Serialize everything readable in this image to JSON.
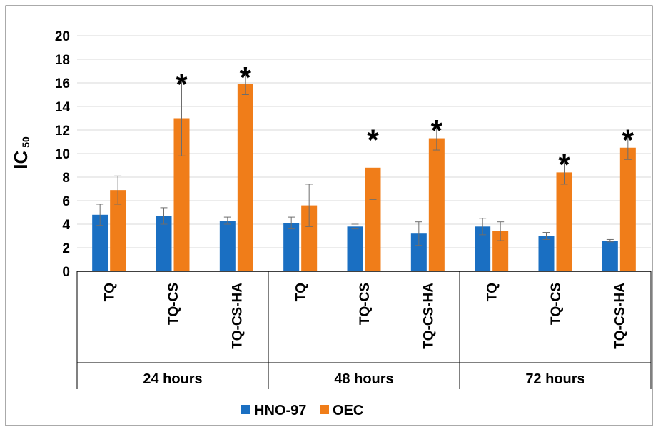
{
  "chart_data": {
    "type": "bar",
    "ylabel": "IC",
    "ylabel_sub": "50",
    "ylim": [
      0,
      20
    ],
    "yticks": [
      0,
      2,
      4,
      6,
      8,
      10,
      12,
      14,
      16,
      18,
      20
    ],
    "grid": true,
    "groups": [
      "24 hours",
      "48 hours",
      "72 hours"
    ],
    "categories": [
      "TQ",
      "TQ-CS",
      "TQ-CS-HA",
      "TQ",
      "TQ-CS",
      "TQ-CS-HA",
      "TQ",
      "TQ-CS",
      "TQ-CS-HA"
    ],
    "series": [
      {
        "name": "HNO-97",
        "color": "#1a6fc2",
        "values": [
          4.8,
          4.7,
          4.3,
          4.1,
          3.8,
          3.2,
          3.8,
          3.0,
          2.6
        ],
        "errors": [
          0.9,
          0.7,
          0.3,
          0.5,
          0.2,
          1.0,
          0.7,
          0.3,
          0.1
        ]
      },
      {
        "name": "OEC",
        "color": "#f07d19",
        "values": [
          6.9,
          13.0,
          15.9,
          5.6,
          8.8,
          11.3,
          3.4,
          8.4,
          10.5
        ],
        "errors": [
          1.2,
          3.2,
          0.9,
          1.8,
          2.7,
          1.0,
          0.8,
          1.0,
          1.0
        ],
        "significant": [
          false,
          true,
          true,
          false,
          true,
          true,
          false,
          true,
          true
        ]
      }
    ],
    "significance_marker": "*",
    "legend_position": "bottom"
  }
}
